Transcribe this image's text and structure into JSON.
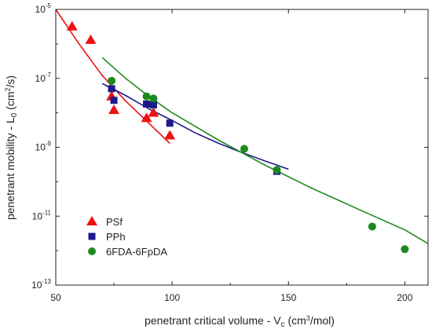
{
  "chart_data": {
    "type": "scatter",
    "xlabel": {
      "main": "penetrant critical volume - V",
      "sub": "c",
      "tail": " (cm",
      "sup": "3",
      "end": "/mol)"
    },
    "ylabel": {
      "main": "penetrant mobility - L",
      "sub": "0",
      "tail": " (cm",
      "sup": "2",
      "end": "/s)"
    },
    "xlim": [
      50,
      210
    ],
    "ylim_log10": [
      -13,
      -5
    ],
    "y_scale": "log",
    "x_ticks": [
      {
        "value": 50,
        "label": "50"
      },
      {
        "value": 100,
        "label": "100"
      },
      {
        "value": 150,
        "label": "150"
      },
      {
        "value": 200,
        "label": "200"
      }
    ],
    "y_ticks": [
      {
        "exp": -5,
        "base": "10",
        "sup": "-5"
      },
      {
        "exp": -7,
        "base": "10",
        "sup": "-7"
      },
      {
        "exp": -9,
        "base": "10",
        "sup": "-9"
      },
      {
        "exp": -11,
        "base": "10",
        "sup": "-11"
      },
      {
        "exp": -13,
        "base": "10",
        "sup": "-13"
      }
    ],
    "legend_position": "bottom-left",
    "series": [
      {
        "name": "PSf",
        "marker": "triangle",
        "color": "#ee1111",
        "points": [
          {
            "x": 57,
            "y": 3.2e-06
          },
          {
            "x": 65,
            "y": 1.3e-06
          },
          {
            "x": 74,
            "y": 3e-08
          },
          {
            "x": 75,
            "y": 1.2e-08
          },
          {
            "x": 89,
            "y": 7e-09
          },
          {
            "x": 92,
            "y": 1e-08
          },
          {
            "x": 99,
            "y": 2.2e-09
          }
        ],
        "fit": [
          [
            50,
            1e-05
          ],
          [
            60,
            1e-06
          ],
          [
            70,
            1.2e-07
          ],
          [
            80,
            2.2e-08
          ],
          [
            90,
            5e-09
          ],
          [
            99,
            1.3e-09
          ]
        ]
      },
      {
        "name": "PPh",
        "marker": "square",
        "color": "#1a1a8c",
        "points": [
          {
            "x": 74,
            "y": 5e-08
          },
          {
            "x": 75,
            "y": 2.3e-08
          },
          {
            "x": 89,
            "y": 1.8e-08
          },
          {
            "x": 92,
            "y": 1.7e-08
          },
          {
            "x": 99,
            "y": 5e-09
          },
          {
            "x": 145,
            "y": 2e-10
          }
        ],
        "fit": [
          [
            70,
            7e-08
          ],
          [
            80,
            3.2e-08
          ],
          [
            90,
            1.3e-08
          ],
          [
            100,
            6e-09
          ],
          [
            110,
            2.6e-09
          ],
          [
            120,
            1.3e-09
          ],
          [
            130,
            7e-10
          ],
          [
            140,
            4e-10
          ],
          [
            150,
            2.3e-10
          ]
        ]
      },
      {
        "name": "6FDA-6FpDA",
        "marker": "circle",
        "color": "#1e8a1e",
        "points": [
          {
            "x": 74,
            "y": 8.5e-08
          },
          {
            "x": 89,
            "y": 3e-08
          },
          {
            "x": 92,
            "y": 2.6e-08
          },
          {
            "x": 131,
            "y": 9e-10
          },
          {
            "x": 145,
            "y": 2.2e-10
          },
          {
            "x": 186,
            "y": 5e-12
          },
          {
            "x": 200,
            "y": 1.1e-12
          }
        ],
        "fit": [
          [
            70,
            4e-07
          ],
          [
            80,
            1e-07
          ],
          [
            90,
            3e-08
          ],
          [
            100,
            1e-08
          ],
          [
            120,
            1.6e-09
          ],
          [
            140,
            3e-10
          ],
          [
            160,
            6.5e-11
          ],
          [
            180,
            1.6e-11
          ],
          [
            200,
            4e-12
          ],
          [
            210,
            1.6e-12
          ]
        ]
      }
    ]
  }
}
